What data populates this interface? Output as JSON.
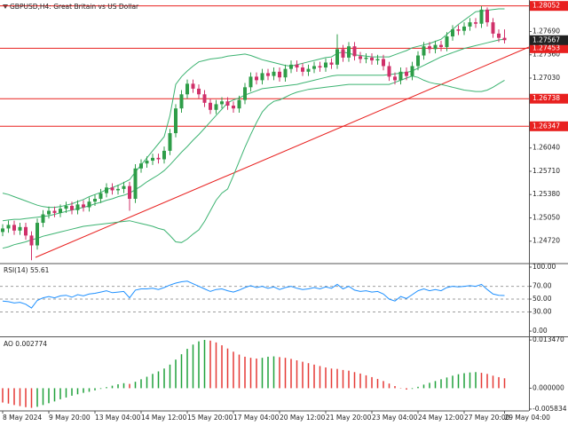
{
  "chart_data": [
    {
      "type": "candlestick",
      "title": "GBPUSD,H4:  Great Britain vs US Dollar",
      "categories": [
        "8 May 2024",
        null,
        null,
        null,
        null,
        null,
        null,
        null,
        "9 May 20:00",
        null,
        null,
        null,
        null,
        null,
        null,
        null,
        "13 May 04:00",
        null,
        null,
        null,
        null,
        null,
        null,
        null,
        "14 May 12:00",
        null,
        null,
        null,
        null,
        null,
        null,
        null,
        "15 May 20:00",
        null,
        null,
        null,
        null,
        null,
        null,
        null,
        "17 May 04:00",
        null,
        null,
        null,
        null,
        null,
        null,
        null,
        "20 May 12:00",
        null,
        null,
        null,
        null,
        null,
        null,
        null,
        "21 May 20:00",
        null,
        null,
        null,
        null,
        null,
        null,
        null,
        "23 May 04:00",
        null,
        null,
        null,
        null,
        null,
        null,
        null,
        "24 May 12:00",
        null,
        null,
        null,
        null,
        null,
        null,
        null,
        "27 May 20:00",
        null,
        null,
        null,
        null,
        null,
        null,
        "29 May 04:00"
      ],
      "open": [
        1.2485,
        1.249,
        1.2495,
        1.2487,
        1.2492,
        1.248,
        1.2466,
        1.2498,
        1.251,
        1.2515,
        1.2512,
        1.2518,
        1.2522,
        1.2516,
        1.2524,
        1.252,
        1.2528,
        1.2532,
        1.254,
        1.2548,
        1.2544,
        1.2546,
        1.255,
        1.2532,
        1.2575,
        1.2582,
        1.2586,
        1.259,
        1.2588,
        1.26,
        1.2625,
        1.266,
        1.268,
        1.2695,
        1.2688,
        1.268,
        1.2668,
        1.2658,
        1.2666,
        1.267,
        1.2664,
        1.266,
        1.2672,
        1.269,
        1.2705,
        1.27,
        1.271,
        1.2706,
        1.2712,
        1.2704,
        1.2716,
        1.2722,
        1.2718,
        1.2712,
        1.2716,
        1.272,
        1.2718,
        1.2725,
        1.2722,
        1.2744,
        1.2732,
        1.2748,
        1.2734,
        1.273,
        1.2732,
        1.2728,
        1.273,
        1.272,
        1.2705,
        1.27,
        1.2712,
        1.2706,
        1.272,
        1.2735,
        1.2748,
        1.2744,
        1.275,
        1.2747,
        1.2762,
        1.2772,
        1.277,
        1.2776,
        1.2782,
        1.278,
        1.28,
        1.2782,
        1.2766,
        1.276
      ],
      "high": [
        1.2496,
        1.2501,
        1.2501,
        1.2498,
        1.2498,
        1.2486,
        1.2504,
        1.2516,
        1.2521,
        1.2521,
        1.2524,
        1.2528,
        1.2528,
        1.253,
        1.253,
        1.2534,
        1.2538,
        1.2546,
        1.2554,
        1.2554,
        1.2552,
        1.2556,
        1.2556,
        1.2581,
        1.2588,
        1.2592,
        1.2596,
        1.2596,
        1.2606,
        1.2631,
        1.2666,
        1.2686,
        1.2701,
        1.2701,
        1.2694,
        1.2686,
        1.2674,
        1.2672,
        1.2676,
        1.2676,
        1.267,
        1.2678,
        1.2696,
        1.2711,
        1.2711,
        1.2716,
        1.2716,
        1.2718,
        1.2718,
        1.2722,
        1.2728,
        1.2728,
        1.2724,
        1.2722,
        1.2726,
        1.2726,
        1.2731,
        1.2731,
        1.2765,
        1.275,
        1.2754,
        1.2754,
        1.274,
        1.2738,
        1.2738,
        1.2736,
        1.2736,
        1.2726,
        1.2711,
        1.2718,
        1.2718,
        1.2726,
        1.2741,
        1.2754,
        1.2754,
        1.2756,
        1.2756,
        1.2768,
        1.2778,
        1.2778,
        1.2782,
        1.2788,
        1.2788,
        1.2805,
        1.2803,
        1.2788,
        1.2772,
        1.2772
      ],
      "low": [
        1.2479,
        1.2484,
        1.2481,
        1.2481,
        1.2474,
        1.2445,
        1.246,
        1.2492,
        1.2504,
        1.2506,
        1.2506,
        1.2512,
        1.251,
        1.251,
        1.2514,
        1.2514,
        1.2522,
        1.2526,
        1.2534,
        1.2538,
        1.2538,
        1.254,
        1.2515,
        1.2526,
        1.2569,
        1.2576,
        1.258,
        1.2582,
        1.2582,
        1.2594,
        1.2619,
        1.2654,
        1.2674,
        1.2682,
        1.2674,
        1.2662,
        1.2652,
        1.2652,
        1.266,
        1.2658,
        1.2654,
        1.2654,
        1.2666,
        1.2684,
        1.2694,
        1.2694,
        1.27,
        1.27,
        1.2698,
        1.2698,
        1.271,
        1.2712,
        1.2706,
        1.2706,
        1.271,
        1.2712,
        1.2712,
        1.2716,
        1.2716,
        1.2726,
        1.2726,
        1.2728,
        1.2724,
        1.2724,
        1.2722,
        1.2722,
        1.2714,
        1.2699,
        1.2694,
        1.2694,
        1.27,
        1.27,
        1.2714,
        1.2729,
        1.2738,
        1.2738,
        1.2741,
        1.2741,
        1.2756,
        1.2764,
        1.2764,
        1.277,
        1.2774,
        1.2774,
        1.2776,
        1.276,
        1.2754,
        1.2752
      ],
      "close": [
        1.249,
        1.2495,
        1.2487,
        1.2492,
        1.248,
        1.2466,
        1.2498,
        1.251,
        1.2515,
        1.2512,
        1.2518,
        1.2522,
        1.2516,
        1.2524,
        1.252,
        1.2528,
        1.2532,
        1.254,
        1.2548,
        1.2544,
        1.2546,
        1.255,
        1.2532,
        1.2575,
        1.2582,
        1.2586,
        1.259,
        1.2588,
        1.26,
        1.2625,
        1.266,
        1.268,
        1.2695,
        1.2688,
        1.268,
        1.2668,
        1.2658,
        1.2666,
        1.267,
        1.2664,
        1.266,
        1.2672,
        1.269,
        1.2705,
        1.27,
        1.271,
        1.2706,
        1.2712,
        1.2704,
        1.2716,
        1.2722,
        1.2718,
        1.2712,
        1.2716,
        1.272,
        1.2718,
        1.2725,
        1.2722,
        1.2744,
        1.2732,
        1.2748,
        1.2734,
        1.273,
        1.2732,
        1.2728,
        1.273,
        1.272,
        1.2705,
        1.27,
        1.2712,
        1.2706,
        1.272,
        1.2735,
        1.2748,
        1.2744,
        1.275,
        1.2747,
        1.2762,
        1.2772,
        1.277,
        1.2776,
        1.2782,
        1.278,
        1.28,
        1.2782,
        1.2766,
        1.276,
        1.27567
      ],
      "up_color": "#2e9d48",
      "down_color": "#d0306a",
      "bands": {
        "color": "#3cb371",
        "upper": [
          1.254,
          1.2538,
          1.2535,
          1.2532,
          1.2529,
          1.2526,
          1.2523,
          1.2521,
          1.252,
          1.252,
          1.2521,
          1.2523,
          1.2525,
          1.2528,
          1.2531,
          1.2535,
          1.2538,
          1.2541,
          1.2545,
          1.2548,
          1.2551,
          1.2555,
          1.2559,
          1.257,
          1.258,
          1.259,
          1.26,
          1.261,
          1.262,
          1.265,
          1.2694,
          1.2705,
          1.2713,
          1.272,
          1.2726,
          1.2728,
          1.273,
          1.2731,
          1.2732,
          1.2734,
          1.2735,
          1.2736,
          1.2737,
          1.2735,
          1.2732,
          1.2729,
          1.2727,
          1.2725,
          1.2723,
          1.2721,
          1.272,
          1.2722,
          1.2724,
          1.2726,
          1.2728,
          1.273,
          1.2732,
          1.2733,
          1.2738,
          1.274,
          1.2738,
          1.2736,
          1.2735,
          1.2734,
          1.2733,
          1.2733,
          1.2733,
          1.2733,
          1.2736,
          1.2739,
          1.2742,
          1.2746,
          1.2748,
          1.275,
          1.2752,
          1.2755,
          1.2758,
          1.2765,
          1.2772,
          1.2779,
          1.2785,
          1.2791,
          1.2797,
          1.2798,
          1.2799,
          1.28,
          1.2801,
          1.2801
        ],
        "middle": [
          1.2501,
          1.2502,
          1.2503,
          1.2503,
          1.2504,
          1.2505,
          1.2506,
          1.2507,
          1.2508,
          1.251,
          1.2512,
          1.2514,
          1.2516,
          1.2518,
          1.252,
          1.2522,
          1.2525,
          1.2527,
          1.253,
          1.2532,
          1.2535,
          1.2537,
          1.254,
          1.2545,
          1.255,
          1.2556,
          1.2561,
          1.2566,
          1.2572,
          1.258,
          1.2589,
          1.2598,
          1.2606,
          1.2615,
          1.2623,
          1.2632,
          1.2641,
          1.265,
          1.2659,
          1.2668,
          1.2672,
          1.2675,
          1.2679,
          1.2682,
          1.2685,
          1.2688,
          1.2689,
          1.269,
          1.2691,
          1.2692,
          1.2693,
          1.2694,
          1.2696,
          1.2698,
          1.27,
          1.2702,
          1.2704,
          1.2706,
          1.2707,
          1.2707,
          1.2707,
          1.2707,
          1.2707,
          1.2707,
          1.2707,
          1.2707,
          1.2707,
          1.2708,
          1.2709,
          1.271,
          1.2711,
          1.2713,
          1.2717,
          1.2721,
          1.2725,
          1.2729,
          1.2733,
          1.2736,
          1.2739,
          1.2742,
          1.2745,
          1.2747,
          1.2749,
          1.2751,
          1.2753,
          1.2755,
          1.2757,
          1.2758
        ],
        "lower": [
          1.2462,
          1.2464,
          1.2467,
          1.2469,
          1.2471,
          1.2474,
          1.2476,
          1.2479,
          1.2481,
          1.2483,
          1.2485,
          1.2487,
          1.2489,
          1.2491,
          1.2493,
          1.2494,
          1.2495,
          1.2496,
          1.2497,
          1.2498,
          1.2499,
          1.25,
          1.2501,
          1.2499,
          1.2497,
          1.2495,
          1.2493,
          1.249,
          1.2488,
          1.248,
          1.2471,
          1.247,
          1.2475,
          1.2482,
          1.2488,
          1.25,
          1.2515,
          1.253,
          1.254,
          1.2546,
          1.2565,
          1.2585,
          1.2605,
          1.2623,
          1.264,
          1.2655,
          1.2664,
          1.267,
          1.2672,
          1.2676,
          1.268,
          1.2683,
          1.2685,
          1.2687,
          1.2688,
          1.2689,
          1.269,
          1.2691,
          1.2692,
          1.2693,
          1.2694,
          1.2694,
          1.2694,
          1.2694,
          1.2694,
          1.2694,
          1.2694,
          1.2694,
          1.2697,
          1.27,
          1.2703,
          1.2706,
          1.2704,
          1.27,
          1.2697,
          1.2695,
          1.2694,
          1.2692,
          1.269,
          1.2688,
          1.2686,
          1.2685,
          1.2684,
          1.2684,
          1.2686,
          1.269,
          1.2695,
          1.27
        ]
      },
      "levels": [
        1.28052,
        1.27453,
        1.26738,
        1.26347
      ],
      "level_color": "#e8201f",
      "level_labels": true,
      "show_last_price": true,
      "ylim": [
        1.24415,
        1.28136
      ],
      "yticks": [
        {
          "value": 1.2769,
          "label": "1.27690"
        },
        {
          "value": 1.2736,
          "label": "1.27360"
        },
        {
          "value": 1.2703,
          "label": "1.27030"
        },
        {
          "value": 1.2604,
          "label": "1.26040"
        },
        {
          "value": 1.2571,
          "label": "1.25710"
        },
        {
          "value": 1.2538,
          "label": "1.25380"
        },
        {
          "value": 1.2505,
          "label": "1.25050"
        },
        {
          "value": 1.2472,
          "label": "1.24720"
        }
      ]
    },
    {
      "type": "line",
      "title": "RSI(14) 55.61",
      "color": "#1e90ff",
      "values": [
        47,
        46,
        44,
        45,
        42,
        36,
        48,
        52,
        54,
        52,
        55,
        56,
        53,
        57,
        55,
        58,
        59,
        61,
        63,
        60,
        61,
        62,
        52,
        64,
        66,
        66,
        67,
        65,
        68,
        72,
        75,
        77,
        78,
        74,
        70,
        66,
        62,
        65,
        66,
        63,
        61,
        64,
        68,
        71,
        68,
        70,
        67,
        69,
        65,
        68,
        70,
        67,
        65,
        66,
        68,
        66,
        69,
        67,
        73,
        66,
        70,
        64,
        62,
        63,
        61,
        62,
        58,
        50,
        47,
        54,
        51,
        57,
        63,
        66,
        63,
        65,
        63,
        68,
        70,
        69,
        70,
        71,
        70,
        73,
        65,
        58,
        56,
        55.61
      ],
      "levels": [
        70,
        50,
        30
      ],
      "level_color": "#9e9e9e",
      "level_labels": false,
      "ylim": [
        -6.8,
        104.1
      ],
      "yticks": [
        {
          "value": 100,
          "label": "100.00"
        },
        {
          "value": 70,
          "label": "70.00"
        },
        {
          "value": 50,
          "label": "50.00"
        },
        {
          "value": 30,
          "label": "30.00"
        },
        {
          "value": 0,
          "label": "0.00"
        }
      ]
    },
    {
      "type": "bar",
      "title": "AO 0.002774",
      "up_color": "#1fa13a",
      "down_color": "#e53935",
      "values": [
        -0.004,
        -0.0043,
        -0.0047,
        -0.005,
        -0.0053,
        -0.0055,
        -0.0052,
        -0.0047,
        -0.0042,
        -0.0037,
        -0.0031,
        -0.0026,
        -0.0021,
        -0.0017,
        -0.0013,
        -0.001,
        -0.0006,
        -0.0002,
        0.0003,
        0.0007,
        0.0011,
        0.0014,
        0.0012,
        0.0018,
        0.0025,
        0.0032,
        0.004,
        0.0047,
        0.0055,
        0.0066,
        0.008,
        0.0095,
        0.011,
        0.0122,
        0.0131,
        0.0135,
        0.0133,
        0.0128,
        0.012,
        0.0111,
        0.0102,
        0.0094,
        0.0088,
        0.0085,
        0.0083,
        0.0085,
        0.0088,
        0.0089,
        0.0087,
        0.0085,
        0.0082,
        0.0078,
        0.0074,
        0.007,
        0.0066,
        0.0062,
        0.0058,
        0.0055,
        0.0054,
        0.0051,
        0.0049,
        0.0045,
        0.0041,
        0.0036,
        0.0031,
        0.0026,
        0.002,
        0.0013,
        0.0006,
        0.0001,
        -0.0004,
        -0.0002,
        0.0004,
        0.001,
        0.0015,
        0.002,
        0.0025,
        0.003,
        0.0035,
        0.0039,
        0.0042,
        0.0044,
        0.0045,
        0.0043,
        0.004,
        0.0035,
        0.0031,
        0.002774
      ],
      "ylim": [
        -0.0061,
        0.014
      ],
      "yticks": [
        {
          "value": 0.01347,
          "label": "0.013470"
        },
        {
          "value": 0,
          "label": "0.000000"
        },
        {
          "value": -0.005834,
          "label": "-0.005834"
        }
      ]
    }
  ]
}
